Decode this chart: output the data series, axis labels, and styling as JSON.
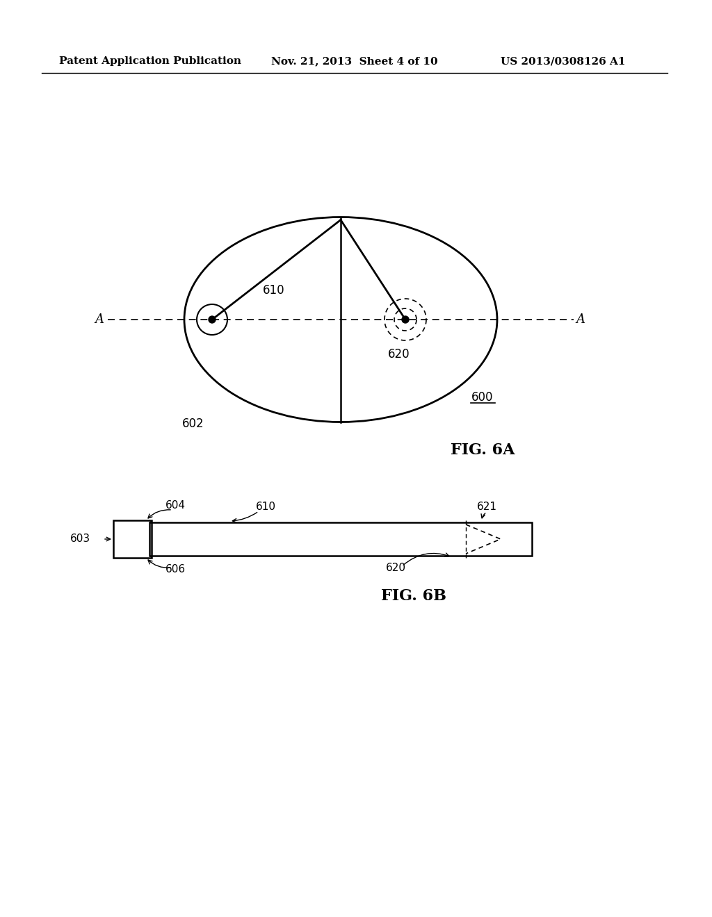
{
  "header_left": "Patent Application Publication",
  "header_mid": "Nov. 21, 2013  Sheet 4 of 10",
  "header_right": "US 2013/0308126 A1",
  "fig6a_label": "FIG. 6A",
  "fig6b_label": "FIG. 6B",
  "label_600": "600",
  "label_602": "602",
  "label_610_6a": "610",
  "label_620_6a": "620",
  "label_A_left": "A",
  "label_A_right": "A",
  "label_603": "603",
  "label_604": "604",
  "label_606": "606",
  "label_610_6b": "610",
  "label_620_6b": "620",
  "label_621": "621",
  "bg_color": "#ffffff",
  "fg_color": "#000000"
}
